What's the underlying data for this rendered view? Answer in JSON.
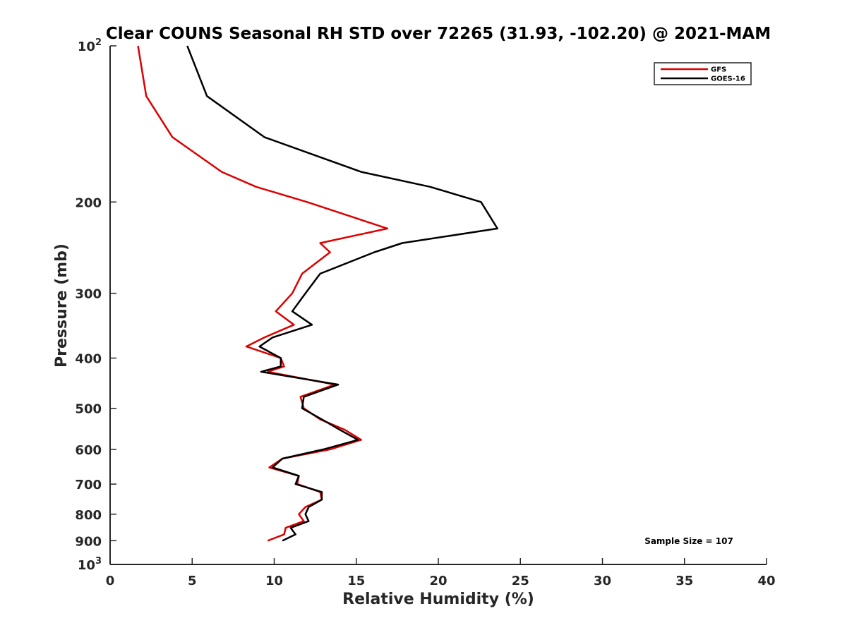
{
  "chart_data": {
    "type": "line",
    "title": "Clear COUNS Seasonal RH STD over 72265 (31.93, -102.20) @ 2021-MAM",
    "xlabel": "Relative Humidity (%)",
    "ylabel": "Pressure (mb)",
    "xlim": [
      0,
      40
    ],
    "ylim": [
      100,
      1000
    ],
    "y_scale": "log",
    "y_direction": "reverse",
    "x_ticks": [
      "0",
      "5",
      "10",
      "15",
      "20",
      "25",
      "30",
      "35",
      "40"
    ],
    "y_ticks": [
      {
        "value": 100,
        "base": "10",
        "exp": "2"
      },
      {
        "value": 200,
        "label": "200"
      },
      {
        "value": 300,
        "label": "300"
      },
      {
        "value": 400,
        "label": "400"
      },
      {
        "value": 500,
        "label": "500"
      },
      {
        "value": 600,
        "label": "600"
      },
      {
        "value": 700,
        "label": "700"
      },
      {
        "value": 800,
        "label": "800"
      },
      {
        "value": 900,
        "label": "900"
      },
      {
        "value": 1000,
        "base": "10",
        "exp": "3"
      }
    ],
    "legend_position": "top-right",
    "annotation": "Sample Size = 107",
    "series": [
      {
        "name": "GFS",
        "color": "#dd0000",
        "x": [
          1.7,
          2.2,
          3.8,
          6.8,
          8.9,
          12.0,
          16.9,
          12.8,
          13.4,
          11.7,
          11.1,
          10.1,
          11.2,
          9.4,
          8.3,
          10.4,
          10.6,
          9.6,
          13.7,
          11.6,
          11.8,
          12.8,
          14.3,
          15.3,
          13.4,
          10.5,
          9.7,
          11.5,
          11.4,
          12.8,
          12.9,
          11.9,
          11.5,
          11.8,
          10.7,
          10.6,
          9.6
        ],
        "y": [
          100,
          125,
          150,
          175,
          187,
          200,
          225,
          240,
          250,
          275,
          300,
          325,
          345,
          365,
          380,
          400,
          415,
          425,
          450,
          475,
          500,
          525,
          550,
          575,
          600,
          625,
          650,
          675,
          700,
          725,
          750,
          775,
          800,
          825,
          850,
          875,
          900
        ]
      },
      {
        "name": "GOES-16",
        "color": "#000000",
        "x": [
          4.7,
          5.9,
          9.4,
          15.3,
          19.5,
          22.6,
          23.6,
          17.8,
          16.1,
          12.8,
          11.9,
          11.1,
          12.3,
          9.9,
          9.1,
          10.4,
          10.4,
          9.2,
          13.9,
          11.8,
          11.7,
          12.9,
          14.0,
          15.1,
          13.0,
          10.5,
          9.9,
          11.5,
          11.3,
          12.9,
          12.9,
          12.1,
          11.9,
          12.1,
          11.0,
          11.3,
          10.5
        ],
        "y": [
          100,
          125,
          150,
          175,
          187,
          200,
          225,
          240,
          250,
          275,
          300,
          325,
          345,
          365,
          380,
          400,
          415,
          425,
          450,
          475,
          500,
          525,
          550,
          575,
          600,
          625,
          650,
          675,
          700,
          725,
          750,
          775,
          800,
          825,
          850,
          875,
          900
        ]
      }
    ]
  }
}
